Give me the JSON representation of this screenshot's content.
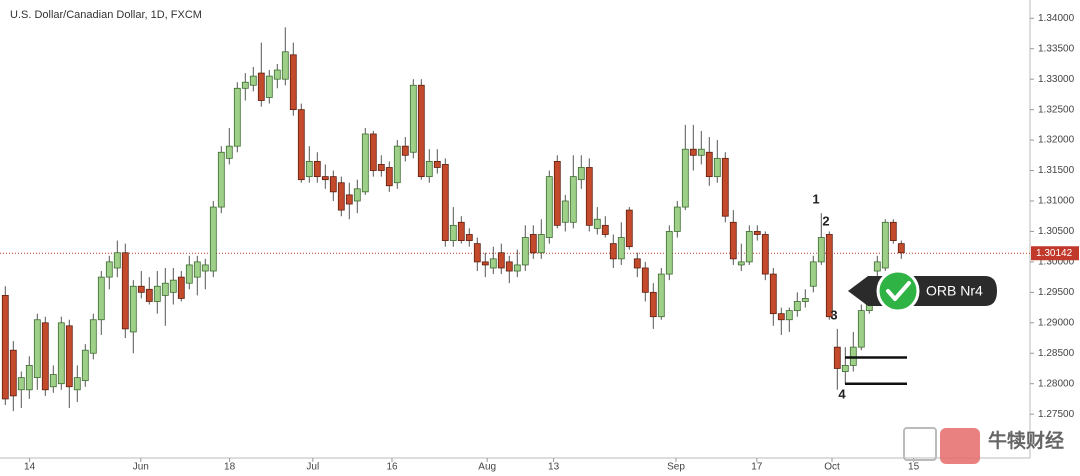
{
  "chart_data": {
    "type": "candlestick",
    "title": "U.S. Dollar/Canadian Dollar, 1D, FXCM",
    "ohlc": [
      [
        1.2945,
        1.296,
        1.2765,
        1.2775
      ],
      [
        1.2855,
        1.287,
        1.2755,
        1.278
      ],
      [
        1.279,
        1.282,
        1.276,
        1.281
      ],
      [
        1.279,
        1.2845,
        1.2775,
        1.283
      ],
      [
        1.281,
        1.2915,
        1.279,
        1.2905
      ],
      [
        1.29,
        1.291,
        1.278,
        1.279
      ],
      [
        1.2795,
        1.283,
        1.2785,
        1.2815
      ],
      [
        1.28,
        1.291,
        1.279,
        1.29
      ],
      [
        1.2895,
        1.2905,
        1.276,
        1.2795
      ],
      [
        1.279,
        1.283,
        1.277,
        1.281
      ],
      [
        1.2805,
        1.2865,
        1.2795,
        1.2855
      ],
      [
        1.285,
        1.2915,
        1.284,
        1.2905
      ],
      [
        1.2905,
        1.2985,
        1.288,
        1.2975
      ],
      [
        1.2975,
        1.301,
        1.2955,
        1.3
      ],
      [
        1.299,
        1.3035,
        1.2975,
        1.3015
      ],
      [
        1.3015,
        1.303,
        1.2875,
        1.289
      ],
      [
        1.2885,
        1.297,
        1.285,
        1.296
      ],
      [
        1.296,
        1.2985,
        1.294,
        1.295
      ],
      [
        1.2955,
        1.2975,
        1.293,
        1.2935
      ],
      [
        1.2935,
        1.2985,
        1.2915,
        1.296
      ],
      [
        1.2945,
        1.299,
        1.2895,
        1.2965
      ],
      [
        1.295,
        1.299,
        1.293,
        1.297
      ],
      [
        1.2975,
        1.2985,
        1.2935,
        1.294
      ],
      [
        1.2965,
        1.301,
        1.2955,
        1.2995
      ],
      [
        1.2975,
        1.301,
        1.2945,
        1.3
      ],
      [
        1.2985,
        1.3005,
        1.2955,
        1.2995
      ],
      [
        1.2985,
        1.31,
        1.2975,
        1.309
      ],
      [
        1.309,
        1.319,
        1.308,
        1.318
      ],
      [
        1.317,
        1.322,
        1.316,
        1.319
      ],
      [
        1.319,
        1.3295,
        1.318,
        1.3285
      ],
      [
        1.3285,
        1.331,
        1.3265,
        1.3295
      ],
      [
        1.329,
        1.332,
        1.328,
        1.3305
      ],
      [
        1.331,
        1.336,
        1.3255,
        1.3265
      ],
      [
        1.327,
        1.3315,
        1.326,
        1.3305
      ],
      [
        1.33,
        1.3325,
        1.3285,
        1.3315
      ],
      [
        1.33,
        1.3385,
        1.329,
        1.3345
      ],
      [
        1.334,
        1.336,
        1.324,
        1.325
      ],
      [
        1.325,
        1.326,
        1.313,
        1.3135
      ],
      [
        1.314,
        1.319,
        1.313,
        1.3165
      ],
      [
        1.3165,
        1.318,
        1.313,
        1.314
      ],
      [
        1.314,
        1.316,
        1.312,
        1.3135
      ],
      [
        1.314,
        1.315,
        1.31,
        1.3115
      ],
      [
        1.313,
        1.314,
        1.3075,
        1.3085
      ],
      [
        1.311,
        1.313,
        1.307,
        1.3095
      ],
      [
        1.31,
        1.3135,
        1.308,
        1.312
      ],
      [
        1.3115,
        1.322,
        1.311,
        1.321
      ],
      [
        1.321,
        1.3215,
        1.314,
        1.315
      ],
      [
        1.316,
        1.3175,
        1.314,
        1.315
      ],
      [
        1.3155,
        1.3165,
        1.3115,
        1.3125
      ],
      [
        1.313,
        1.32,
        1.312,
        1.319
      ],
      [
        1.319,
        1.3205,
        1.3165,
        1.3175
      ],
      [
        1.318,
        1.33,
        1.317,
        1.329
      ],
      [
        1.329,
        1.33,
        1.3135,
        1.314
      ],
      [
        1.314,
        1.3185,
        1.313,
        1.3165
      ],
      [
        1.3165,
        1.3185,
        1.3145,
        1.3155
      ],
      [
        1.316,
        1.317,
        1.3025,
        1.3035
      ],
      [
        1.3035,
        1.309,
        1.3025,
        1.306
      ],
      [
        1.3065,
        1.3075,
        1.303,
        1.3035
      ],
      [
        1.3045,
        1.3055,
        1.3025,
        1.3035
      ],
      [
        1.303,
        1.304,
        1.2985,
        1.3
      ],
      [
        1.3,
        1.3015,
        1.2975,
        1.2995
      ],
      [
        1.299,
        1.3025,
        1.298,
        1.3005
      ],
      [
        1.3015,
        1.303,
        1.298,
        1.299
      ],
      [
        1.3,
        1.301,
        1.2965,
        1.2985
      ],
      [
        1.2985,
        1.302,
        1.2975,
        1.2995
      ],
      [
        1.2995,
        1.306,
        1.2985,
        1.304
      ],
      [
        1.3045,
        1.306,
        1.3005,
        1.3015
      ],
      [
        1.3015,
        1.307,
        1.3005,
        1.3045
      ],
      [
        1.304,
        1.315,
        1.303,
        1.314
      ],
      [
        1.3165,
        1.3175,
        1.3055,
        1.306
      ],
      [
        1.3065,
        1.311,
        1.305,
        1.31
      ],
      [
        1.3065,
        1.3175,
        1.3055,
        1.314
      ],
      [
        1.3135,
        1.3175,
        1.312,
        1.3155
      ],
      [
        1.3155,
        1.317,
        1.305,
        1.306
      ],
      [
        1.3055,
        1.309,
        1.3045,
        1.307
      ],
      [
        1.306,
        1.3075,
        1.304,
        1.3045
      ],
      [
        1.303,
        1.3045,
        1.299,
        1.3005
      ],
      [
        1.3005,
        1.3065,
        1.2995,
        1.304
      ],
      [
        1.3085,
        1.309,
        1.302,
        1.3025
      ],
      [
        1.3005,
        1.3015,
        1.2975,
        1.299
      ],
      [
        1.299,
        1.3,
        1.2935,
        1.295
      ],
      [
        1.295,
        1.2965,
        1.289,
        1.291
      ],
      [
        1.291,
        1.299,
        1.2905,
        1.298
      ],
      [
        1.298,
        1.306,
        1.297,
        1.305
      ],
      [
        1.305,
        1.31,
        1.304,
        1.309
      ],
      [
        1.309,
        1.3225,
        1.3085,
        1.3185
      ],
      [
        1.3185,
        1.3225,
        1.315,
        1.3175
      ],
      [
        1.3175,
        1.3215,
        1.316,
        1.3185
      ],
      [
        1.318,
        1.3205,
        1.3125,
        1.314
      ],
      [
        1.314,
        1.32,
        1.313,
        1.317
      ],
      [
        1.317,
        1.318,
        1.3065,
        1.3075
      ],
      [
        1.3065,
        1.3085,
        1.2995,
        1.3005
      ],
      [
        1.2995,
        1.303,
        1.2985,
        1.3
      ],
      [
        1.3,
        1.306,
        1.2995,
        1.305
      ],
      [
        1.305,
        1.306,
        1.3035,
        1.3045
      ],
      [
        1.3045,
        1.305,
        1.297,
        1.298
      ],
      [
        1.298,
        1.299,
        1.2895,
        1.2915
      ],
      [
        1.2915,
        1.2925,
        1.288,
        1.2905
      ],
      [
        1.2905,
        1.2925,
        1.2885,
        1.292
      ],
      [
        1.292,
        1.295,
        1.291,
        1.2935
      ],
      [
        1.2935,
        1.2955,
        1.2925,
        1.294
      ],
      [
        1.296,
        1.301,
        1.295,
        1.3
      ],
      [
        1.3,
        1.308,
        1.2995,
        1.304
      ],
      [
        1.3045,
        1.305,
        1.2905,
        1.291
      ],
      [
        1.286,
        1.289,
        1.279,
        1.2825
      ],
      [
        1.282,
        1.286,
        1.28,
        1.283
      ],
      [
        1.283,
        1.2885,
        1.282,
        1.286
      ],
      [
        1.286,
        1.293,
        1.2855,
        1.292
      ],
      [
        1.292,
        1.2975,
        1.2915,
        1.296
      ],
      [
        1.2985,
        1.301,
        1.2975,
        1.3
      ],
      [
        1.299,
        1.307,
        1.2985,
        1.3065
      ],
      [
        1.3065,
        1.307,
        1.303,
        1.3035
      ],
      [
        1.303,
        1.3035,
        1.3005,
        1.3015
      ]
    ],
    "up_color": "#9fd08a",
    "down_color": "#c44a2c",
    "xlim": [
      -0.6,
      128.15
    ],
    "xticks": [
      {
        "value": 3.1,
        "label": "14"
      },
      {
        "value": 17,
        "label": "Jun"
      },
      {
        "value": 28.1,
        "label": "18"
      },
      {
        "value": 38.5,
        "label": "Jul"
      },
      {
        "value": 48.4,
        "label": "16"
      },
      {
        "value": 60.3,
        "label": "Aug"
      },
      {
        "value": 68.6,
        "label": "13"
      },
      {
        "value": 83.9,
        "label": "Sep"
      },
      {
        "value": 94,
        "label": "17"
      },
      {
        "value": 103.4,
        "label": "Oct"
      },
      {
        "value": 113.6,
        "label": "15"
      }
    ],
    "ylim": [
      1.2678,
      1.343
    ],
    "yticks": [
      {
        "value": 1.275,
        "label": "1.27500"
      },
      {
        "value": 1.28,
        "label": "1.28000"
      },
      {
        "value": 1.285,
        "label": "1.28500"
      },
      {
        "value": 1.29,
        "label": "1.29000"
      },
      {
        "value": 1.295,
        "label": "1.29500"
      },
      {
        "value": 1.3,
        "label": "1.30000"
      },
      {
        "value": 1.305,
        "label": "1.30500"
      },
      {
        "value": 1.31,
        "label": "1.31000"
      },
      {
        "value": 1.315,
        "label": "1.31500"
      },
      {
        "value": 1.32,
        "label": "1.32000"
      },
      {
        "value": 1.325,
        "label": "1.32500"
      },
      {
        "value": 1.33,
        "label": "1.33000"
      },
      {
        "value": 1.335,
        "label": "1.33500"
      },
      {
        "value": 1.34,
        "label": "1.34000"
      }
    ],
    "grid": false,
    "last_price": {
      "value": 1.30142,
      "label": "1.30142"
    },
    "levels": [
      1.2843,
      1.28
    ],
    "annotations": [
      "1",
      "2",
      "3",
      "4"
    ],
    "callout": "ORB Nr4",
    "watermark": "牛犊财经"
  }
}
